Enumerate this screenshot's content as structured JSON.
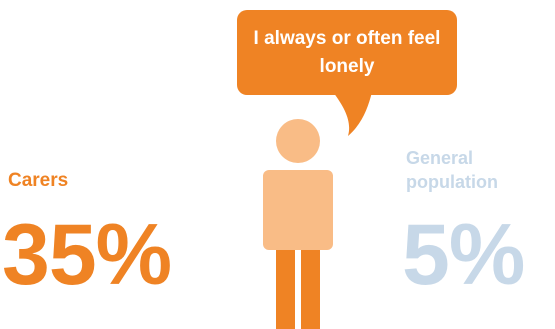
{
  "speech_bubble": {
    "text": "I always or often feel lonely"
  },
  "carers": {
    "label": "Carers",
    "percent": "35%"
  },
  "general": {
    "label": "General population",
    "percent": "5%"
  },
  "colors": {
    "orange": "#ef8324",
    "light_orange": "#f9bc86",
    "light_blue": "#c7d8e8"
  }
}
